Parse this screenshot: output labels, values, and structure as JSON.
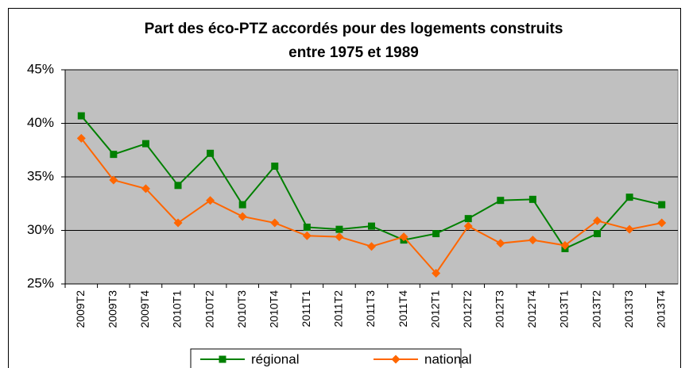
{
  "chart_data": {
    "type": "line",
    "title": [
      "Part des éco-PTZ accordés pour des logements construits",
      "entre 1975 et 1989"
    ],
    "categories": [
      "2009T2",
      "2009T3",
      "2009T4",
      "2010T1",
      "2010T2",
      "2010T3",
      "2010T4",
      "2011T1",
      "2011T2",
      "2011T3",
      "2011T4",
      "2012T1",
      "2012T2",
      "2012T3",
      "2012T4",
      "2013T1",
      "2013T2",
      "2013T3",
      "2013T4"
    ],
    "series": [
      {
        "name": "régional",
        "color": "#008000",
        "marker": "square",
        "values": [
          40.7,
          37.1,
          38.1,
          34.2,
          37.2,
          32.4,
          36.0,
          30.3,
          30.1,
          30.4,
          29.1,
          29.7,
          31.1,
          32.8,
          32.9,
          28.3,
          29.7,
          33.1,
          32.4
        ]
      },
      {
        "name": "national",
        "color": "#ff6600",
        "marker": "diamond",
        "values": [
          38.6,
          34.7,
          33.9,
          30.7,
          32.8,
          31.3,
          30.7,
          29.5,
          29.4,
          28.5,
          29.4,
          26.0,
          30.4,
          28.8,
          29.1,
          28.6,
          30.9,
          30.1,
          30.7
        ]
      }
    ],
    "ylim": [
      25,
      45
    ],
    "yticks": [
      {
        "value": 25,
        "label": "25%"
      },
      {
        "value": 30,
        "label": "30%"
      },
      {
        "value": 35,
        "label": "35%"
      },
      {
        "value": 40,
        "label": "40%"
      },
      {
        "value": 45,
        "label": "45%"
      }
    ],
    "grid": true,
    "legend": "bottom"
  }
}
